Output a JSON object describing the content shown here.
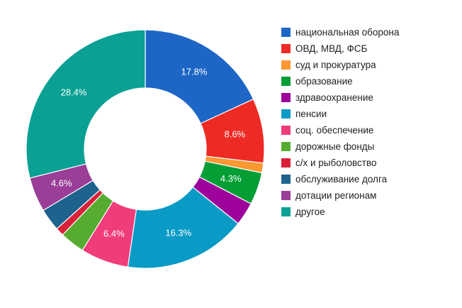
{
  "chart_data": {
    "type": "pie",
    "title": "",
    "legend_position": "right",
    "slices": [
      {
        "label": "национальная оборона",
        "value": 17.8,
        "value_label": "17.8%",
        "color": "#1e66c6"
      },
      {
        "label": "ОВД, МВД, ФСБ",
        "value": 8.6,
        "value_label": "8.6%",
        "color": "#ee2a24"
      },
      {
        "label": "суд и прокуратура",
        "value": 1.3,
        "value_label": "",
        "color": "#fb9832"
      },
      {
        "label": "образование",
        "value": 4.3,
        "value_label": "4.3%",
        "color": "#059e35"
      },
      {
        "label": "здравоохранение",
        "value": 3.1,
        "value_label": "",
        "color": "#9d039a"
      },
      {
        "label": "пенсии",
        "value": 16.3,
        "value_label": "16.3%",
        "color": "#0a9ac6"
      },
      {
        "label": "соц. обеспечение",
        "value": 6.4,
        "value_label": "6.4%",
        "color": "#f03c7b"
      },
      {
        "label": "дорожные фонды",
        "value": 3.3,
        "value_label": "",
        "color": "#55ac30"
      },
      {
        "label": "с/х и рыболовство",
        "value": 1.1,
        "value_label": "",
        "color": "#d9213a"
      },
      {
        "label": "обслуживание долга",
        "value": 3.0,
        "value_label": "",
        "color": "#1e628e"
      },
      {
        "label": "дотации регионам",
        "value": 4.6,
        "value_label": "4.6%",
        "color": "#9a3e98"
      },
      {
        "label": "другое",
        "value": 28.4,
        "value_label": "28.4%",
        "color": "#0aa194"
      }
    ]
  }
}
